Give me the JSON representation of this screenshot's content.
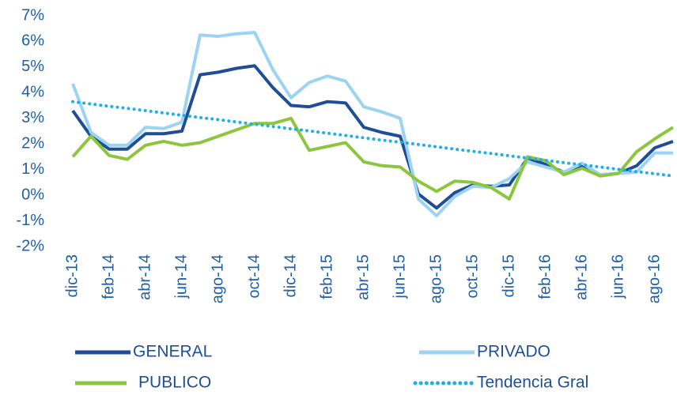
{
  "chart_data": {
    "type": "line",
    "categories": [
      "dic-13",
      null,
      "feb-14",
      null,
      "abr-14",
      null,
      "jun-14",
      null,
      "ago-14",
      null,
      "oct-14",
      null,
      "dic-14",
      null,
      "feb-15",
      null,
      "abr-15",
      null,
      "jun-15",
      null,
      "ago-15",
      null,
      "oct-15",
      null,
      "dic-15",
      null,
      "feb-16",
      null,
      "abr-16",
      null,
      "jun-16",
      null,
      "ago-16",
      null
    ],
    "series": [
      {
        "name": "GENERAL",
        "color": "#1f4e96",
        "values": [
          3.3,
          2.3,
          1.8,
          1.8,
          2.4,
          2.4,
          2.5,
          4.7,
          4.8,
          4.95,
          5.05,
          4.2,
          3.5,
          3.45,
          3.65,
          3.6,
          2.65,
          2.45,
          2.3,
          0.05,
          -0.5,
          0.1,
          0.4,
          0.35,
          0.4,
          1.45,
          1.2,
          0.9,
          1.15,
          0.8,
          0.85,
          1.15,
          1.85,
          2.1
        ]
      },
      {
        "name": "PRIVADO",
        "color": "#9dd3f2",
        "values": [
          4.35,
          2.45,
          1.95,
          1.95,
          2.65,
          2.6,
          2.85,
          6.25,
          6.2,
          6.3,
          6.35,
          4.9,
          3.8,
          4.4,
          4.65,
          4.45,
          3.45,
          3.25,
          3.0,
          -0.15,
          -0.8,
          -0.05,
          0.35,
          0.3,
          0.65,
          1.3,
          1.1,
          0.9,
          1.25,
          0.8,
          0.85,
          0.9,
          1.65,
          1.65
        ]
      },
      {
        "name": "PUBLICO",
        "color": "#8cc63f",
        "values": [
          1.5,
          2.3,
          1.55,
          1.4,
          1.95,
          2.1,
          1.95,
          2.05,
          2.3,
          2.55,
          2.8,
          2.8,
          3.0,
          1.75,
          1.9,
          2.05,
          1.3,
          1.15,
          1.1,
          0.55,
          0.15,
          0.55,
          0.5,
          0.3,
          -0.15,
          1.5,
          1.35,
          0.8,
          1.05,
          0.75,
          0.85,
          1.7,
          2.2,
          2.65
        ]
      },
      {
        "name": "Tendencia Gral",
        "color": "#1fb0e6",
        "dash": "dotted",
        "values": [
          3.65,
          3.56,
          3.47,
          3.39,
          3.3,
          3.21,
          3.12,
          3.03,
          2.95,
          2.86,
          2.77,
          2.68,
          2.59,
          2.51,
          2.42,
          2.33,
          2.24,
          2.15,
          2.07,
          1.98,
          1.89,
          1.8,
          1.71,
          1.63,
          1.54,
          1.45,
          1.36,
          1.27,
          1.19,
          1.1,
          1.01,
          0.92,
          0.84,
          0.75
        ]
      }
    ],
    "ylim": [
      -2,
      7
    ],
    "yticks": [
      {
        "value": -2,
        "label": "-2%"
      },
      {
        "value": -1,
        "label": "-1%"
      },
      {
        "value": 0,
        "label": "0%"
      },
      {
        "value": 1,
        "label": "1%"
      },
      {
        "value": 2,
        "label": "2%"
      },
      {
        "value": 3,
        "label": "3%"
      },
      {
        "value": 4,
        "label": "4%"
      },
      {
        "value": 5,
        "label": "5%"
      },
      {
        "value": 6,
        "label": "6%"
      },
      {
        "value": 7,
        "label": "7%"
      }
    ],
    "grid": false,
    "legend": "bottom"
  }
}
